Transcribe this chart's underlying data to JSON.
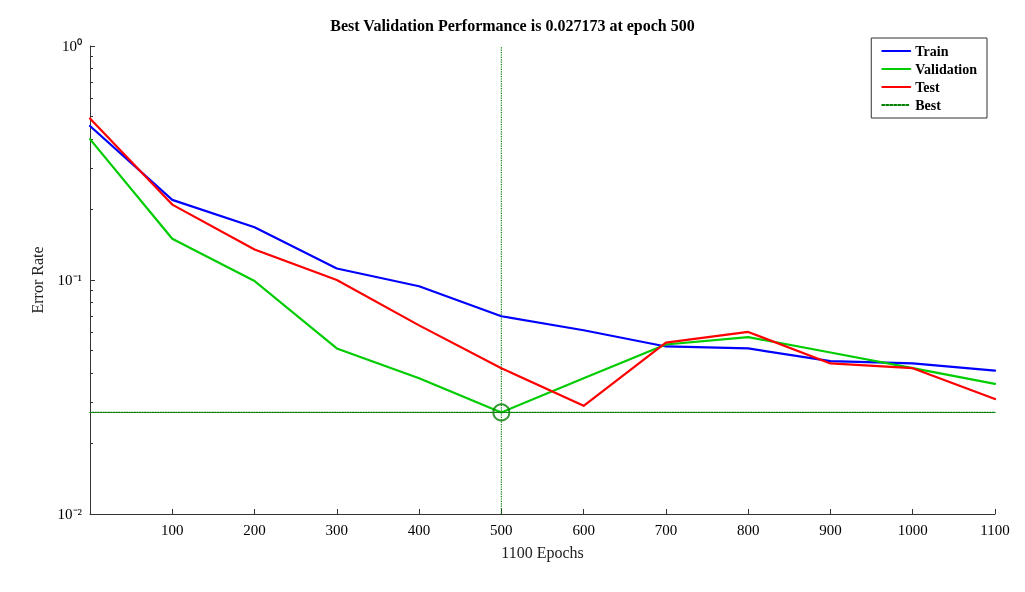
{
  "chart_data": {
    "type": "line",
    "title": "Best Validation Performance is 0.027173 at epoch 500",
    "xlabel": "1100 Epochs",
    "ylabel": "Error Rate",
    "x": [
      0,
      100,
      200,
      300,
      400,
      500,
      600,
      700,
      800,
      900,
      1000,
      1100
    ],
    "series": [
      {
        "name": "Train",
        "color": "#0000ff",
        "values": [
          0.455,
          0.22,
          0.168,
          0.112,
          0.094,
          0.07,
          0.061,
          0.052,
          0.051,
          0.045,
          0.044,
          0.041
        ]
      },
      {
        "name": "Validation",
        "color": "#00cc00",
        "values": [
          0.4,
          0.15,
          0.099,
          0.051,
          0.038,
          0.027173,
          0.038,
          0.053,
          0.057,
          0.049,
          0.042,
          0.036
        ]
      },
      {
        "name": "Test",
        "color": "#ff0000",
        "values": [
          0.49,
          0.21,
          0.135,
          0.1,
          0.064,
          0.042,
          0.029,
          0.054,
          0.06,
          0.044,
          0.042,
          0.031
        ]
      },
      {
        "name": "Best",
        "type": "line",
        "x": [
          0,
          1100
        ],
        "values": [
          0.027173,
          0.027173
        ],
        "color": "#007f00",
        "line_style": "dotted"
      },
      {
        "type": "scatter",
        "x": [
          500
        ],
        "values": [
          0.027173
        ],
        "color": "#007f00",
        "marker": "circle"
      }
    ],
    "ref_lines": [
      {
        "axis": "x",
        "value": 500,
        "color": "#007f00",
        "line_style": "dotted"
      }
    ],
    "log": "y",
    "xlim": [
      0,
      1100
    ],
    "xticks": [
      100,
      200,
      300,
      400,
      500,
      600,
      700,
      800,
      900,
      1000,
      1100
    ],
    "ylim": [
      0.01,
      1
    ],
    "yticks": [
      {
        "value": 0.01,
        "label": "10⁻²"
      },
      {
        "value": 0.1,
        "label": "10⁻¹"
      },
      {
        "value": 1,
        "label": "10⁰"
      }
    ],
    "grid": false,
    "legend": "top right",
    "marker": "none",
    "line_style": "solid"
  }
}
